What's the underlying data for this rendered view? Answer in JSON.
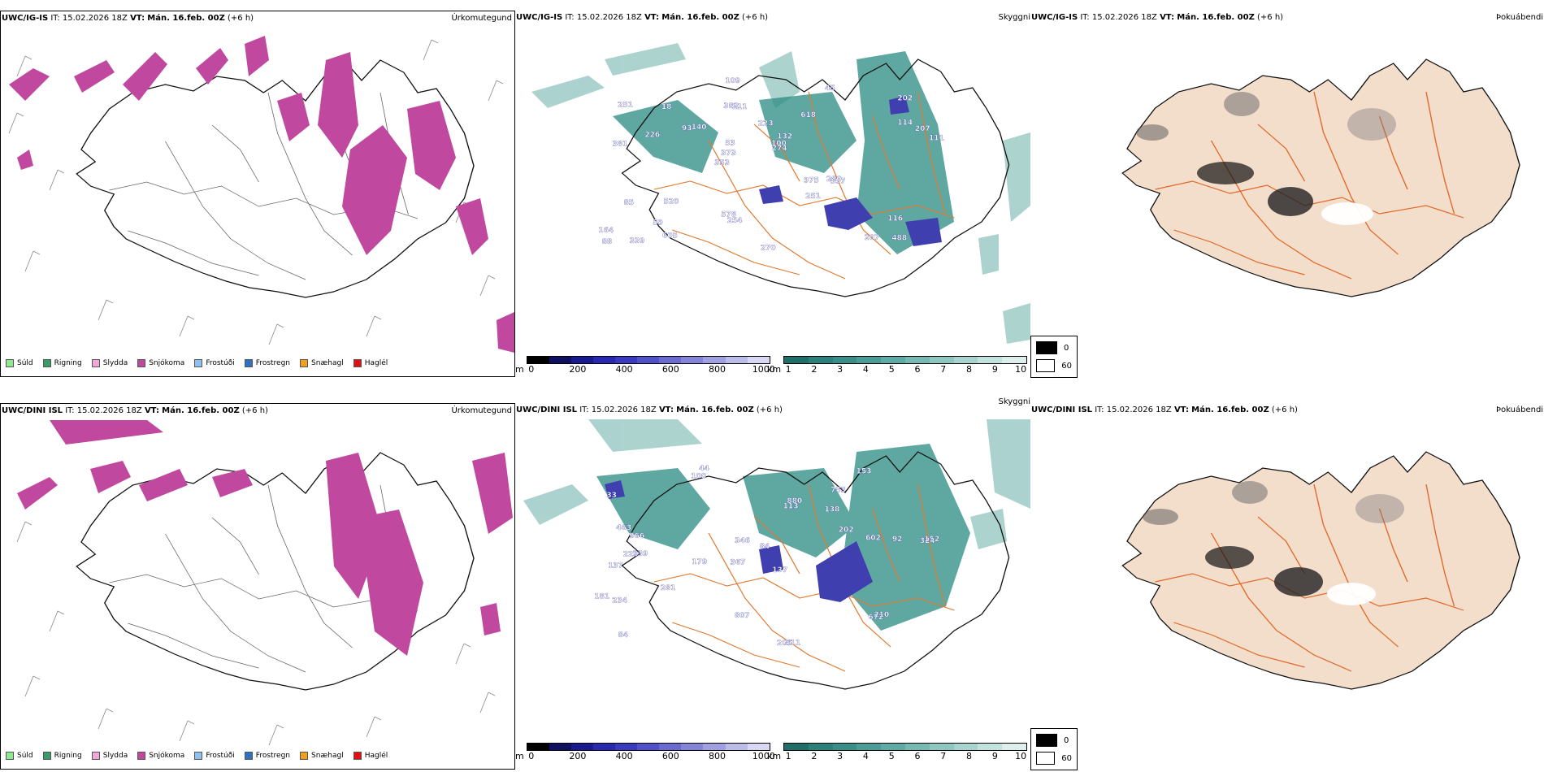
{
  "colors": {
    "snow": "#c0489e",
    "cloud": "#3a9a92",
    "ceiling": "#3f3fb0",
    "land": "#f3ddcb",
    "roads": "#e06a2a",
    "coast": "#111111"
  },
  "rows": [
    {
      "model": "UWC/IG-IS",
      "it_label": "IT:",
      "it_value": "15.02.2026 18Z",
      "vt_label": "VT:",
      "vt_value": "Mán. 16.feb. 00Z",
      "lead": "(+6 h)",
      "labels": [
        "488",
        "381",
        "202",
        "353",
        "618",
        "339",
        "382",
        "223",
        "85",
        "140",
        "164",
        "59",
        "111",
        "132",
        "597",
        "251",
        "109",
        "111",
        "975",
        "114",
        "373",
        "578",
        "53",
        "18",
        "45",
        "520",
        "207",
        "116",
        "280",
        "270",
        "93",
        "226",
        "251",
        "605",
        "207",
        "100",
        "88",
        "254",
        "274"
      ]
    },
    {
      "model": "UWC/DINI ISL",
      "it_label": "IT:",
      "it_value": "15.02.2026 18Z",
      "vt_label": "VT:",
      "vt_value": "Mán. 16.feb. 00Z",
      "lead": "(+6 h)",
      "labels": [
        "44",
        "753",
        "324",
        "367",
        "137",
        "139",
        "33",
        "138",
        "137",
        "113",
        "84",
        "84",
        "100",
        "179",
        "205",
        "511",
        "807",
        "153",
        "202",
        "281",
        "966",
        "229",
        "152",
        "92",
        "181",
        "463",
        "346",
        "602",
        "210",
        "234",
        "672",
        "880"
      ]
    }
  ],
  "panel_titles": {
    "precip_type": "Úrkomutegund",
    "cloud": "Skyggni",
    "fog": "Þokuábendi"
  },
  "precip_legend": [
    {
      "label": "Súld",
      "color": "#90e890"
    },
    {
      "label": "Rigning",
      "color": "#3a9a6a"
    },
    {
      "label": "Slydda",
      "color": "#f0a8d8"
    },
    {
      "label": "Snjókoma",
      "color": "#c0489e"
    },
    {
      "label": "Frostúði",
      "color": "#90c0f0"
    },
    {
      "label": "Frostregn",
      "color": "#3070c0"
    },
    {
      "label": "Snæhagl",
      "color": "#f0a020"
    },
    {
      "label": "Haglél",
      "color": "#e01010"
    }
  ],
  "ceiling_bar": {
    "unit": "m",
    "ticks": [
      "0",
      "200",
      "400",
      "600",
      "800",
      "1000"
    ],
    "colors": [
      "#000000",
      "#101060",
      "#1a1a90",
      "#2828b0",
      "#3a3ac0",
      "#5050c8",
      "#6a6ad0",
      "#8484d8",
      "#a0a0e0",
      "#bcbce8",
      "#d8d8f4"
    ]
  },
  "vis_bar": {
    "unit": "km",
    "ticks": [
      "1",
      "2",
      "3",
      "4",
      "5",
      "6",
      "7",
      "8",
      "9",
      "10"
    ],
    "colors": [
      "#1f6e68",
      "#2a807a",
      "#388e88",
      "#4a9c96",
      "#5eaaa4",
      "#76b8b2",
      "#8ec6c0",
      "#a8d4d0",
      "#c2e2de",
      "#dcefed"
    ]
  },
  "fog_bar": {
    "items": [
      {
        "value": "0",
        "color": "#000000"
      },
      {
        "value": "60",
        "color": "#ffffff"
      }
    ]
  }
}
